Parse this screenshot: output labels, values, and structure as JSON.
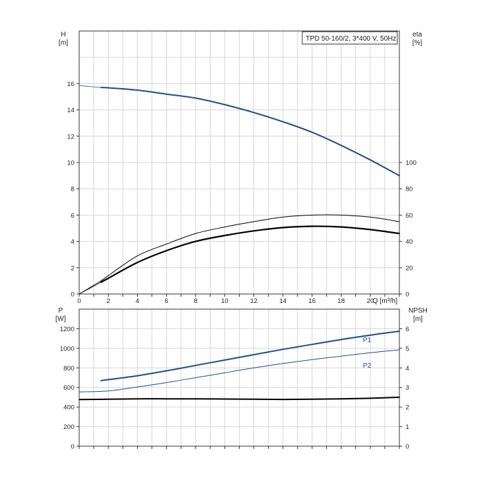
{
  "chart_data": [
    {
      "type": "line",
      "title": "TPD 50-160/2, 3*400 V, 50Hz",
      "xlabel": "Q [m³/h]",
      "x_tick_labels": [
        "0",
        "2",
        "4",
        "6",
        "8",
        "10",
        "12",
        "14",
        "16",
        "18",
        "20"
      ],
      "xlim": [
        0,
        22
      ],
      "y_left": {
        "label_top": "H",
        "label_unit": "[m]",
        "ticks": [
          "0",
          "2",
          "4",
          "6",
          "8",
          "10",
          "12",
          "14",
          "16"
        ],
        "ylim": [
          0,
          20
        ]
      },
      "y_right": {
        "label_top": "eta",
        "label_unit": "[%]",
        "ticks": [
          "0",
          "20",
          "40",
          "60",
          "80",
          "100"
        ],
        "ylim": [
          0,
          200
        ]
      },
      "grid": true,
      "series": [
        {
          "id": "H",
          "axis": "left",
          "color": "#1f4e8c",
          "x": [
            1.5,
            2,
            4,
            6,
            8,
            10,
            12,
            14,
            16,
            18,
            20,
            22
          ],
          "y": [
            15.7,
            15.68,
            15.5,
            15.2,
            14.9,
            14.4,
            13.8,
            13.1,
            12.3,
            11.3,
            10.2,
            9.0
          ]
        },
        {
          "id": "eta-1",
          "axis": "right",
          "color": "#000000",
          "x": [
            1.5,
            2,
            4,
            6,
            8,
            10,
            12,
            14,
            16,
            18,
            20,
            22
          ],
          "y": [
            10,
            14,
            29,
            38,
            46,
            51,
            55,
            58.5,
            60,
            60,
            58.5,
            55
          ]
        },
        {
          "id": "eta-2",
          "axis": "right",
          "color": "#000000",
          "x": [
            1.5,
            2,
            4,
            6,
            8,
            10,
            12,
            14,
            16,
            18,
            20,
            22
          ],
          "y": [
            9,
            12,
            24,
            33,
            40,
            44.5,
            48,
            50.5,
            51.5,
            51,
            49,
            46
          ]
        }
      ]
    },
    {
      "type": "line",
      "xlim": [
        0,
        22
      ],
      "y_left": {
        "label_top": "P",
        "label_unit": "[W]",
        "ticks": [
          "0",
          "200",
          "400",
          "600",
          "800",
          "1000",
          "1200"
        ],
        "ylim": [
          0,
          1400
        ]
      },
      "y_right": {
        "label_top": "NPSH",
        "label_unit": "[m]",
        "ticks": [
          "0",
          "1",
          "2",
          "3",
          "4",
          "5",
          "6"
        ],
        "ylim": [
          0,
          7
        ]
      },
      "grid": true,
      "series": [
        {
          "name": "P1",
          "axis": "left",
          "color": "#1f4e8c",
          "x": [
            1.5,
            2,
            4,
            6,
            8,
            10,
            12,
            14,
            16,
            18,
            20,
            22
          ],
          "y": [
            670,
            680,
            720,
            770,
            825,
            880,
            935,
            990,
            1040,
            1090,
            1135,
            1175
          ]
        },
        {
          "name": "P2",
          "axis": "left",
          "color": "#1f4e8c",
          "x": [
            0,
            2,
            4,
            6,
            8,
            10,
            12,
            14,
            16,
            18,
            20,
            22
          ],
          "y": [
            555,
            565,
            605,
            650,
            700,
            750,
            800,
            845,
            885,
            920,
            955,
            985
          ]
        },
        {
          "id": "NPSH",
          "axis": "right",
          "color": "#000000",
          "x": [
            0,
            2,
            4,
            6,
            8,
            10,
            12,
            14,
            16,
            18,
            20,
            22
          ],
          "y": [
            2.38,
            2.4,
            2.42,
            2.42,
            2.42,
            2.41,
            2.4,
            2.39,
            2.4,
            2.42,
            2.45,
            2.5
          ]
        }
      ]
    }
  ]
}
